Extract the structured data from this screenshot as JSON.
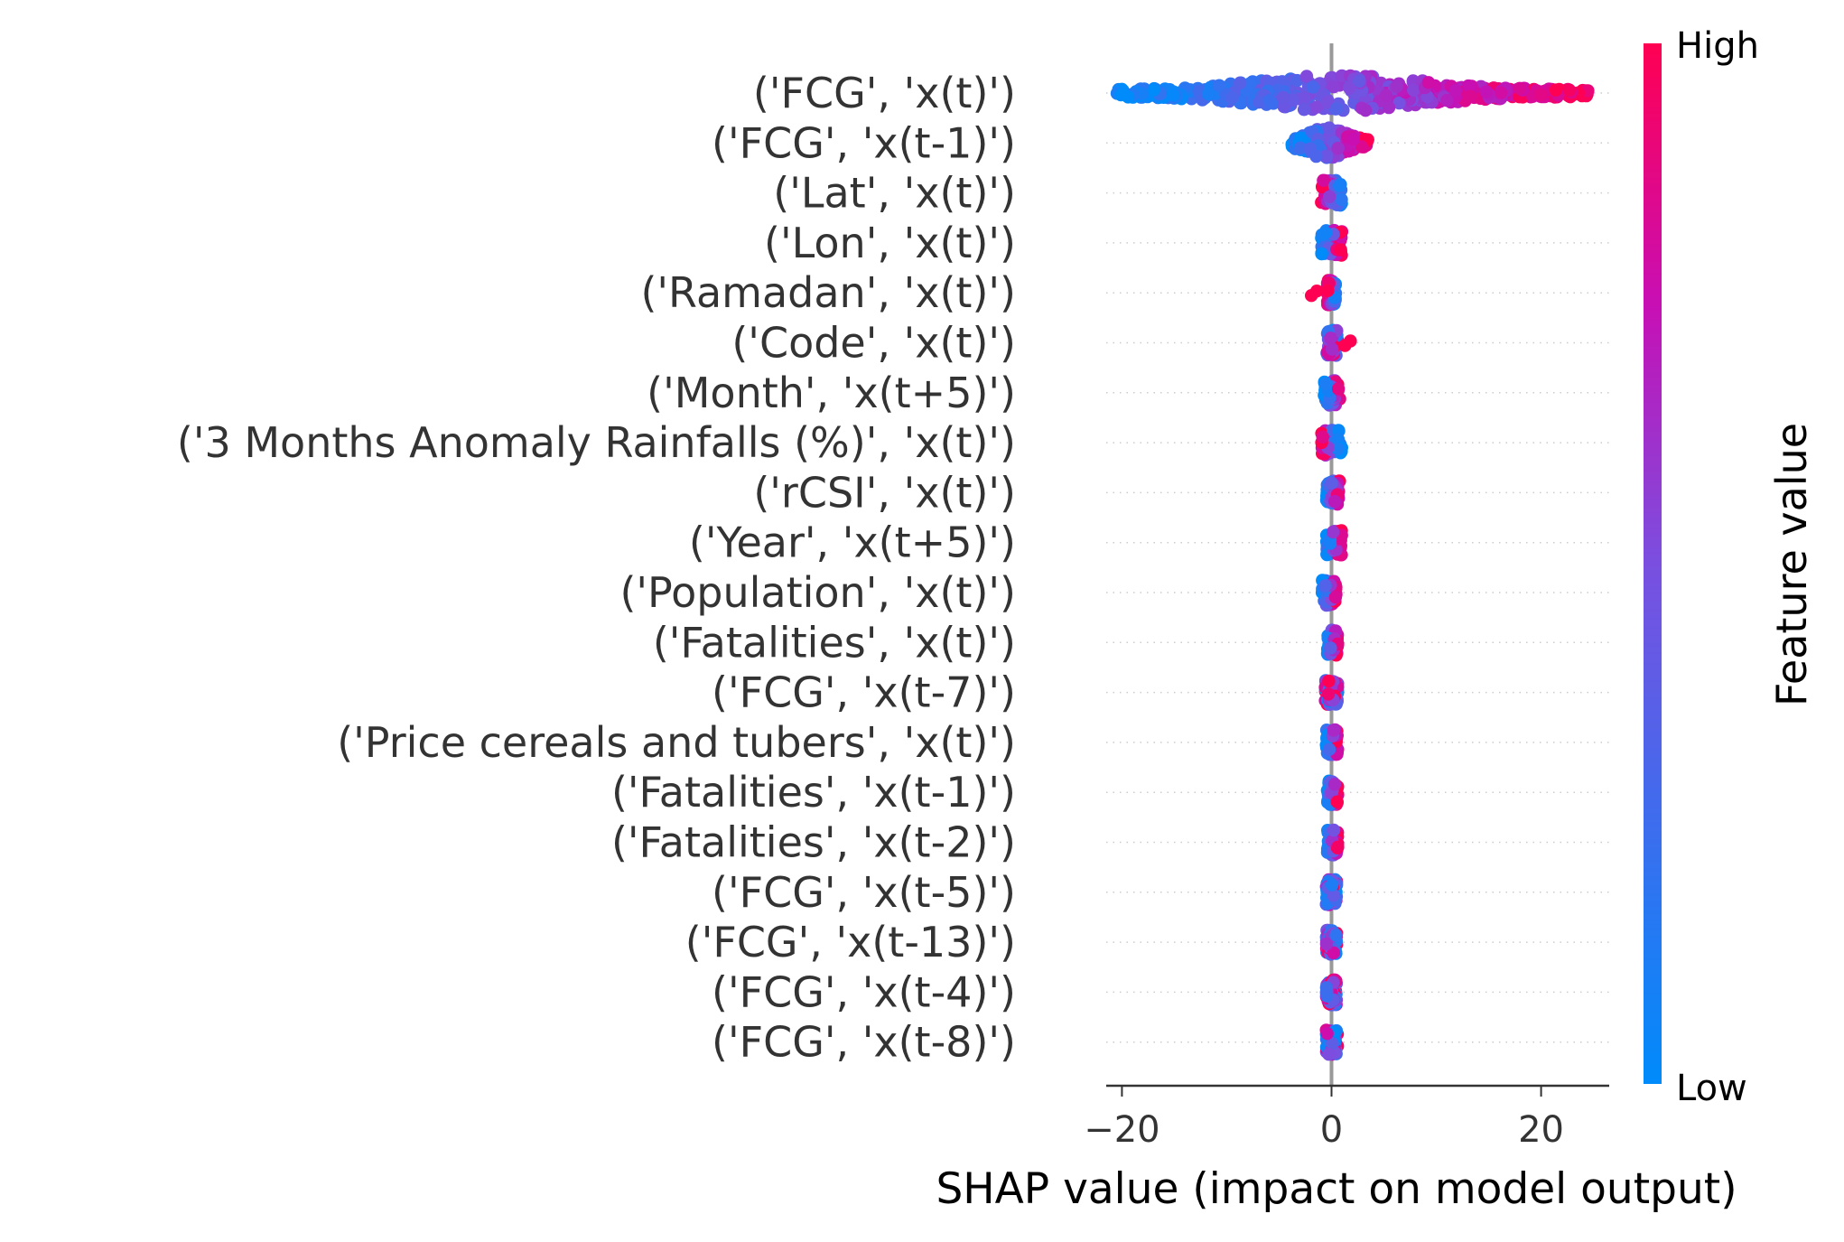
{
  "chart_data": {
    "type": "scatter",
    "subtype": "shap-beeswarm",
    "title": "",
    "xlabel": "SHAP value (impact on model output)",
    "ylabel": "",
    "xlim": [
      -21.5,
      26.5
    ],
    "xticks": [
      {
        "value": -20,
        "label": "−20"
      },
      {
        "value": 0,
        "label": "0"
      },
      {
        "value": 20,
        "label": "20"
      }
    ],
    "features": [
      {
        "name": "('FCG', 'x(t)')",
        "min": -20.5,
        "max": 24.5,
        "spread": 4.0,
        "low_side": "left",
        "red_outliers": []
      },
      {
        "name": "('FCG', 'x(t-1)')",
        "min": -3.8,
        "max": 3.5,
        "spread": 2.0,
        "low_side": "left",
        "red_outliers": []
      },
      {
        "name": "('Lat', 'x(t)')",
        "min": -1.0,
        "max": 1.0,
        "spread": 1.0,
        "low_side": "right",
        "red_outliers": []
      },
      {
        "name": "('Lon', 'x(t)')",
        "min": -1.0,
        "max": 1.0,
        "spread": 1.0,
        "low_side": "left",
        "red_outliers": []
      },
      {
        "name": "('Ramadan', 'x(t)')",
        "min": -0.4,
        "max": 0.4,
        "spread": 1.0,
        "low_side": "right",
        "red_outliers": [
          -1.4
        ]
      },
      {
        "name": "('Code', 'x(t)')",
        "min": -0.5,
        "max": 0.6,
        "spread": 1.0,
        "low_side": "mixed",
        "red_outliers": [
          1.8
        ]
      },
      {
        "name": "('Month', 'x(t+5)')",
        "min": -0.7,
        "max": 0.8,
        "spread": 1.0,
        "low_side": "left",
        "red_outliers": []
      },
      {
        "name": "('3 Months Anomaly Rainfalls (%)', 'x(t)')",
        "min": -1.0,
        "max": 1.0,
        "spread": 1.0,
        "low_side": "right",
        "red_outliers": []
      },
      {
        "name": "('rCSI', 'x(t)')",
        "min": -0.5,
        "max": 0.8,
        "spread": 1.0,
        "low_side": "left",
        "red_outliers": []
      },
      {
        "name": "('Year', 'x(t+5)')",
        "min": -0.5,
        "max": 1.0,
        "spread": 1.0,
        "low_side": "left",
        "red_outliers": []
      },
      {
        "name": "('Population', 'x(t)')",
        "min": -0.9,
        "max": 0.5,
        "spread": 1.0,
        "low_side": "left",
        "red_outliers": []
      },
      {
        "name": "('Fatalities', 'x(t)')",
        "min": -0.4,
        "max": 0.6,
        "spread": 1.0,
        "low_side": "left",
        "red_outliers": []
      },
      {
        "name": "('FCG', 'x(t-7)')",
        "min": -0.6,
        "max": 0.6,
        "spread": 1.0,
        "low_side": "mixed",
        "red_outliers": []
      },
      {
        "name": "('Price cereals and tubers', 'x(t)')",
        "min": -0.5,
        "max": 0.6,
        "spread": 1.0,
        "low_side": "left",
        "red_outliers": []
      },
      {
        "name": "('Fatalities', 'x(t-1)')",
        "min": -0.4,
        "max": 0.6,
        "spread": 1.0,
        "low_side": "left",
        "red_outliers": []
      },
      {
        "name": "('Fatalities', 'x(t-2)')",
        "min": -0.4,
        "max": 0.6,
        "spread": 1.0,
        "low_side": "left",
        "red_outliers": []
      },
      {
        "name": "('FCG', 'x(t-5)')",
        "min": -0.5,
        "max": 0.5,
        "spread": 1.0,
        "low_side": "mixed",
        "red_outliers": []
      },
      {
        "name": "('FCG', 'x(t-13)')",
        "min": -0.5,
        "max": 0.5,
        "spread": 1.0,
        "low_side": "mixed",
        "red_outliers": []
      },
      {
        "name": "('FCG', 'x(t-4)')",
        "min": -0.5,
        "max": 0.5,
        "spread": 1.0,
        "low_side": "mixed",
        "red_outliers": []
      },
      {
        "name": "('FCG', 'x(t-8)')",
        "min": -0.5,
        "max": 0.6,
        "spread": 1.0,
        "low_side": "mixed",
        "red_outliers": []
      }
    ],
    "colorbar": {
      "title": "Feature value",
      "high_label": "High",
      "low_label": "Low",
      "high_color": "#ff0052",
      "mid_color": "#c80fb4",
      "low_color": "#008bfb"
    },
    "zero_line_color": "#999999",
    "grid": "dotted horizontal guides"
  }
}
